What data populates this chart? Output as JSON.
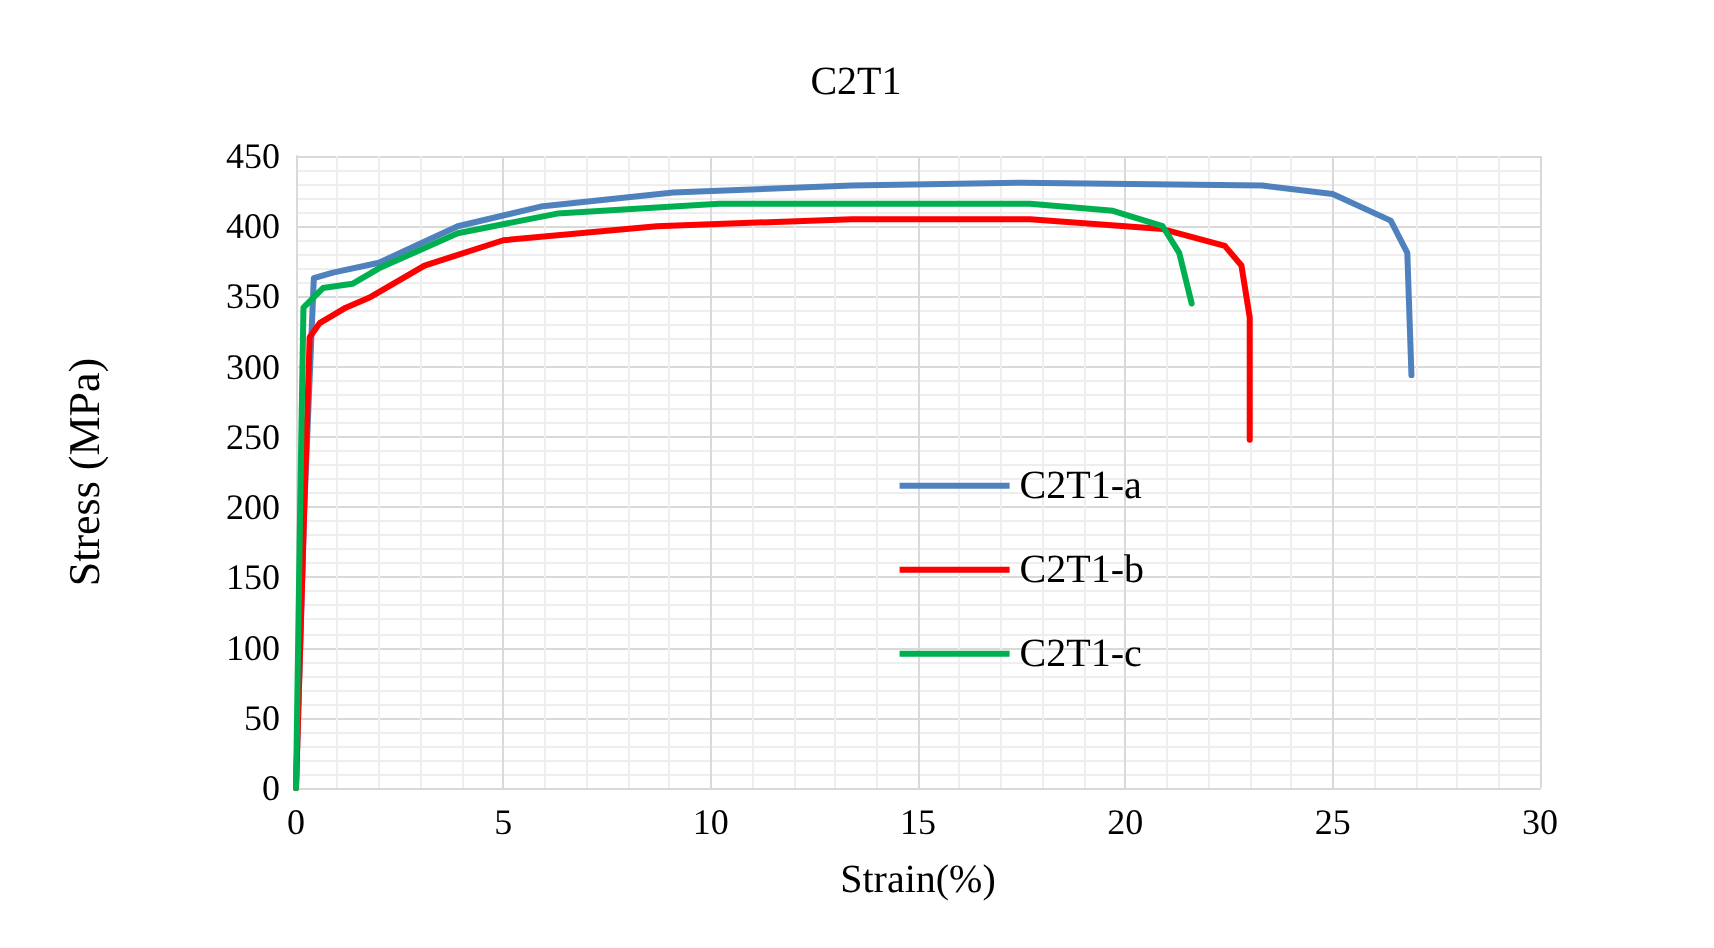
{
  "chart_data": {
    "type": "line",
    "title": "C2T1",
    "xlabel": "Strain(%)",
    "ylabel": "Stress (MPa)",
    "xlim": [
      0,
      30
    ],
    "xticks": [
      0,
      5,
      10,
      15,
      20,
      25,
      30
    ],
    "ylim": [
      0,
      450
    ],
    "yticks": [
      0,
      50,
      100,
      150,
      200,
      250,
      300,
      350,
      400,
      450
    ],
    "grid": true,
    "legend": "center",
    "marker": "none",
    "line_style": "solid",
    "series": [
      {
        "name": "C2T1-a",
        "color": "#4f81bd",
        "x": [
          0,
          0.2,
          0.43,
          0.89,
          2.0,
          3.9,
          5.9,
          9.1,
          13.4,
          17.5,
          23.3,
          25,
          26.4,
          26.8,
          26.9
        ],
        "values": [
          0,
          200,
          363,
          367,
          374,
          400,
          414,
          424,
          429,
          431,
          429,
          423,
          404,
          381,
          294
        ]
      },
      {
        "name": "C2T1-b",
        "color": "#ff0000",
        "x": [
          0,
          0.2,
          0.33,
          0.57,
          1.2,
          1.76,
          3.1,
          5,
          8.7,
          13.4,
          17.7,
          20.9,
          22.4,
          22.8,
          23,
          23
        ],
        "values": [
          0,
          200,
          321,
          331,
          342,
          349,
          372,
          390,
          400,
          405,
          405,
          398,
          386,
          372,
          335,
          248
        ]
      },
      {
        "name": "C2T1-c",
        "color": "#00b050",
        "x": [
          0,
          0.1,
          0.18,
          0.65,
          1.36,
          2,
          3.9,
          6.3,
          10.2,
          17.7,
          19.7,
          20.9,
          21.3,
          21.6
        ],
        "values": [
          0,
          200,
          342,
          356,
          359,
          370,
          395,
          409,
          416,
          416,
          411,
          400,
          381,
          345
        ]
      }
    ]
  }
}
